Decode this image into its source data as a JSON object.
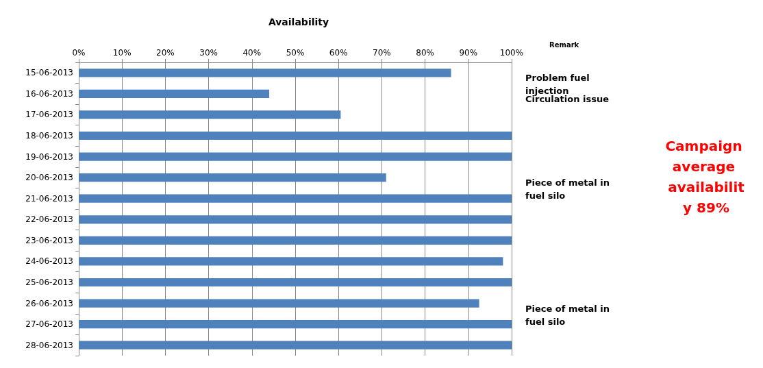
{
  "chart_data": {
    "type": "bar",
    "orientation": "horizontal",
    "title": "Availability",
    "categories": [
      "15-06-2013",
      "16-06-2013",
      "17-06-2013",
      "18-06-2013",
      "19-06-2013",
      "20-06-2013",
      "21-06-2013",
      "22-06-2013",
      "23-06-2013",
      "24-06-2013",
      "25-06-2013",
      "26-06-2013",
      "27-06-2013",
      "28-06-2013"
    ],
    "values": [
      86,
      44,
      60.5,
      100,
      100,
      71,
      100,
      100,
      100,
      98,
      100,
      92.5,
      100,
      100
    ],
    "color": "#4f81bd",
    "xlim": [
      0,
      100
    ],
    "xticks": [
      {
        "value": 0,
        "label": "0%"
      },
      {
        "value": 10,
        "label": "10%"
      },
      {
        "value": 20,
        "label": "20%"
      },
      {
        "value": 30,
        "label": "30%"
      },
      {
        "value": 40,
        "label": "40%"
      },
      {
        "value": 50,
        "label": "50%"
      },
      {
        "value": 60,
        "label": "60%"
      },
      {
        "value": 70,
        "label": "70%"
      },
      {
        "value": 80,
        "label": "80%"
      },
      {
        "value": 90,
        "label": "90%"
      },
      {
        "value": 100,
        "label": "100%"
      }
    ],
    "grid": "x",
    "annotations": [
      "Remark",
      "Problem fuel injection",
      "Circulation issue",
      "Piece of metal in fuel silo",
      "Piece of metal in fuel silo",
      "Campaign average availability 89%"
    ]
  }
}
